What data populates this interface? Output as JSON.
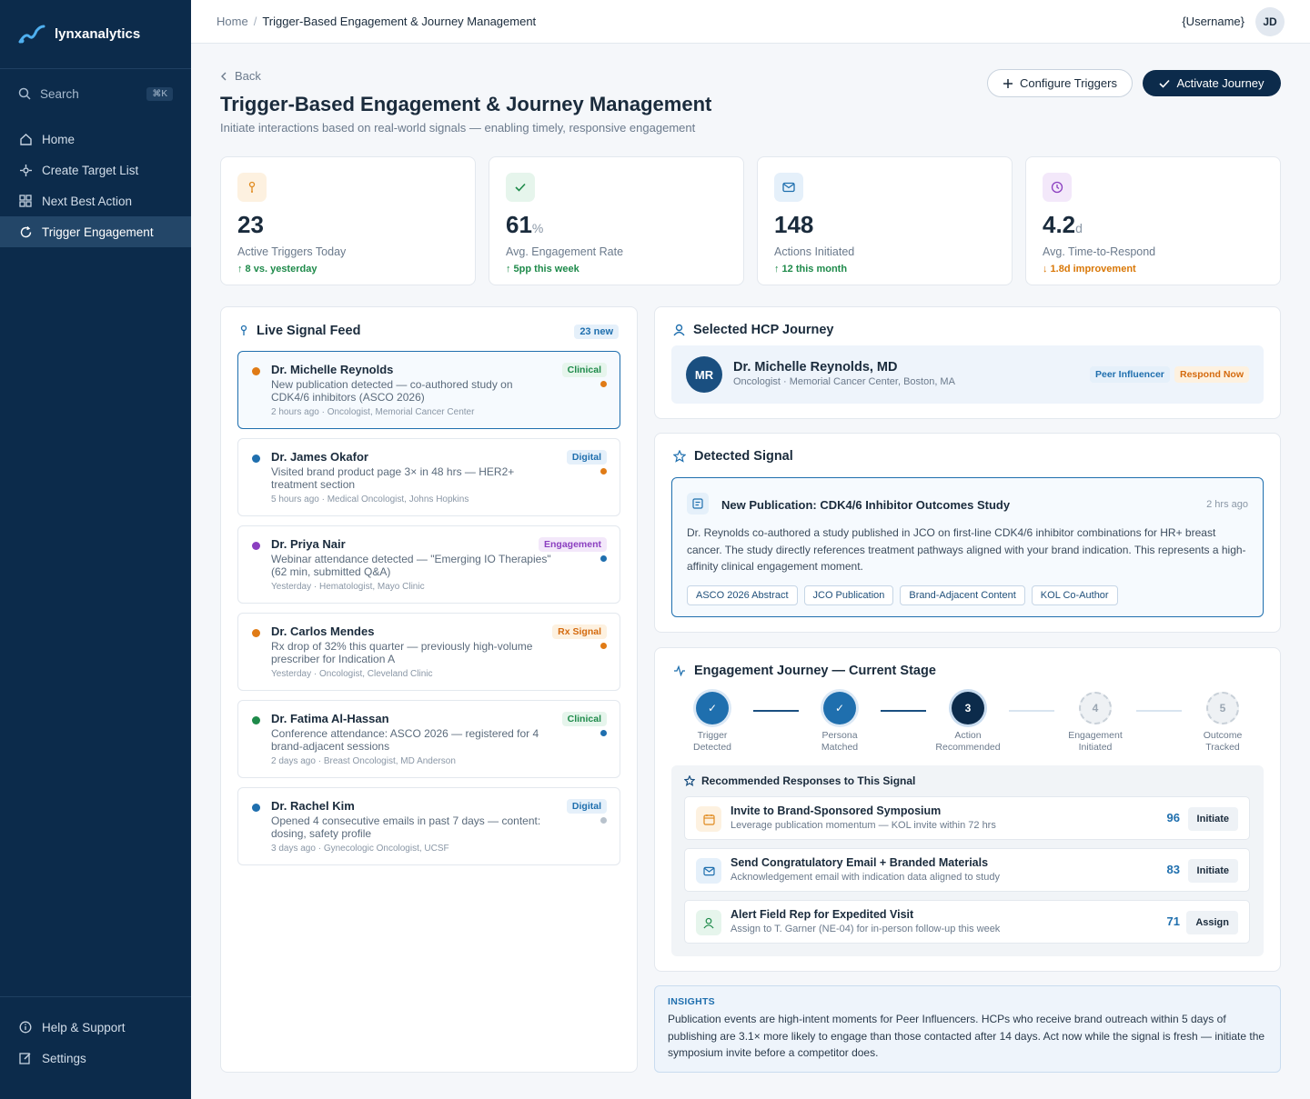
{
  "app": {
    "name": "lynxanalytics"
  },
  "sidebar": {
    "search_label": "Search",
    "search_shortcut": "⌘K",
    "items": [
      {
        "label": "Home",
        "icon": "home-icon"
      },
      {
        "label": "Create Target List",
        "icon": "target-icon"
      },
      {
        "label": "Next Best Action",
        "icon": "grid-icon"
      },
      {
        "label": "Trigger Engagement",
        "icon": "refresh-icon",
        "active": true
      }
    ],
    "bottom": [
      {
        "label": "Help & Support",
        "icon": "info-icon"
      },
      {
        "label": "Settings",
        "icon": "edit-icon"
      }
    ]
  },
  "topbar": {
    "breadcrumb_home": "Home",
    "breadcrumb_sep": "/",
    "breadcrumb_current": "Trigger-Based Engagement & Journey Management",
    "username": "{Username}",
    "avatar_initials": "JD"
  },
  "page": {
    "back_label": "Back",
    "title": "Trigger-Based Engagement & Journey Management",
    "subtitle": "Initiate interactions based on real-world signals — enabling timely, responsive engagement",
    "configure_label": "Configure Triggers",
    "activate_label": "Activate Journey"
  },
  "stats": [
    {
      "value": "23",
      "unit": "",
      "label": "Active Triggers Today",
      "delta": "↑ 8 vs. yesterday",
      "delta_color": "#1e8a4a",
      "icon": "trigger-icon",
      "icon_bg": "#fdf1e0",
      "icon_color": "#e08a1e"
    },
    {
      "value": "61",
      "unit": "%",
      "label": "Avg. Engagement Rate",
      "delta": "↑ 5pp this week",
      "delta_color": "#1e8a4a",
      "icon": "check-icon",
      "icon_bg": "#e6f5ec",
      "icon_color": "#1e8a4a"
    },
    {
      "value": "148",
      "unit": "",
      "label": "Actions Initiated",
      "delta": "↑ 12 this month",
      "delta_color": "#1e8a4a",
      "icon": "mail-icon",
      "icon_bg": "#e5f0fa",
      "icon_color": "#1f6fae"
    },
    {
      "value": "4.2",
      "unit": "d",
      "label": "Avg. Time-to-Respond",
      "delta": "↓ 1.8d improvement",
      "delta_color": "#d97706",
      "icon": "clock-icon",
      "icon_bg": "#f3e8fa",
      "icon_color": "#8b3fc0"
    }
  ],
  "feed": {
    "title": "Live Signal Feed",
    "badge": "23 new",
    "items": [
      {
        "name": "Dr. Michelle Reynolds",
        "desc": "New publication detected — co-authored study on CDK4/6 inhibitors (ASCO 2026)",
        "meta": "2 hours ago · Oncologist, Memorial Cancer Center",
        "tag": "Clinical",
        "tag_color": "#1e8a4a",
        "tag_bg": "#e6f5ec",
        "dot": "#e07b16",
        "sdot": "#e07b16",
        "selected": true
      },
      {
        "name": "Dr. James Okafor",
        "desc": "Visited brand product page 3× in 48 hrs — HER2+ treatment section",
        "meta": "5 hours ago · Medical Oncologist, Johns Hopkins",
        "tag": "Digital",
        "tag_color": "#1f6fae",
        "tag_bg": "#e5f0fa",
        "dot": "#1f6fae",
        "sdot": "#e07b16"
      },
      {
        "name": "Dr. Priya Nair",
        "desc": "Webinar attendance detected — \"Emerging IO Therapies\" (62 min, submitted Q&A)",
        "meta": "Yesterday · Hematologist, Mayo Clinic",
        "tag": "Engagement",
        "tag_color": "#8b3fc0",
        "tag_bg": "#f3e8fa",
        "dot": "#8b3fc0",
        "sdot": "#1f6fae"
      },
      {
        "name": "Dr. Carlos Mendes",
        "desc": "Rx drop of 32% this quarter — previously high-volume prescriber for Indication A",
        "meta": "Yesterday · Oncologist, Cleveland Clinic",
        "tag": "Rx Signal",
        "tag_color": "#d46a0e",
        "tag_bg": "#fdf1e0",
        "dot": "#e07b16",
        "sdot": "#e07b16"
      },
      {
        "name": "Dr. Fatima Al-Hassan",
        "desc": "Conference attendance: ASCO 2026 — registered for 4 brand-adjacent sessions",
        "meta": "2 days ago · Breast Oncologist, MD Anderson",
        "tag": "Clinical",
        "tag_color": "#1e8a4a",
        "tag_bg": "#e6f5ec",
        "dot": "#1e8a4a",
        "sdot": "#1f6fae"
      },
      {
        "name": "Dr. Rachel Kim",
        "desc": "Opened 4 consecutive emails in past 7 days — content: dosing, safety profile",
        "meta": "3 days ago · Gynecologic Oncologist, UCSF",
        "tag": "Digital",
        "tag_color": "#1f6fae",
        "tag_bg": "#e5f0fa",
        "dot": "#1f6fae",
        "sdot": "#b8c2cc"
      }
    ]
  },
  "hcp": {
    "section_title": "Selected HCP Journey",
    "initials": "MR",
    "name": "Dr. Michelle Reynolds, MD",
    "sub": "Oncologist · Memorial Cancer Center, Boston, MA",
    "badge1": "Peer Influencer",
    "badge2": "Respond Now"
  },
  "signal": {
    "section_title": "Detected Signal",
    "title": "New Publication: CDK4/6 Inhibitor Outcomes Study",
    "time": "2 hrs ago",
    "body": "Dr. Reynolds co-authored a study published in JCO on first-line CDK4/6 inhibitor combinations for HR+ breast cancer. The study directly references treatment pathways aligned with your brand indication. This represents a high-affinity clinical engagement moment.",
    "chips": [
      "ASCO 2026 Abstract",
      "JCO Publication",
      "Brand-Adjacent Content",
      "KOL Co-Author"
    ]
  },
  "journey": {
    "section_title": "Engagement Journey — Current Stage",
    "steps": [
      {
        "label1": "Trigger",
        "label2": "Detected",
        "mark": "✓",
        "state": "done"
      },
      {
        "label1": "Persona",
        "label2": "Matched",
        "mark": "✓",
        "state": "done"
      },
      {
        "label1": "Action",
        "label2": "Recommended",
        "mark": "3",
        "state": "current"
      },
      {
        "label1": "Engagement",
        "label2": "Initiated",
        "mark": "4",
        "state": "todo"
      },
      {
        "label1": "Outcome",
        "label2": "Tracked",
        "mark": "5",
        "state": "todo"
      }
    ],
    "responses_title": "Recommended Responses to This Signal",
    "responses": [
      {
        "title": "Invite to Brand-Sponsored Symposium",
        "desc": "Leverage publication momentum — KOL invite within 72 hrs",
        "score": "96",
        "action": "Initiate",
        "icon": "calendar-icon",
        "icon_bg": "#fdf1e0",
        "icon_color": "#e08a1e"
      },
      {
        "title": "Send Congratulatory Email + Branded Materials",
        "desc": "Acknowledgement email with indication data aligned to study",
        "score": "83",
        "action": "Initiate",
        "icon": "mail-icon",
        "icon_bg": "#e5f0fa",
        "icon_color": "#1f6fae"
      },
      {
        "title": "Alert Field Rep for Expedited Visit",
        "desc": "Assign to T. Garner (NE-04) for in-person follow-up this week",
        "score": "71",
        "action": "Assign",
        "icon": "user-icon",
        "icon_bg": "#e6f5ec",
        "icon_color": "#1e8a4a"
      }
    ]
  },
  "insights": {
    "label": "INSIGHTS",
    "text": "Publication events are high-intent moments for Peer Influencers. HCPs who receive brand outreach within 5 days of publishing are 3.1× more likely to engage than those contacted after 14 days. Act now while the signal is fresh — initiate the symposium invite before a competitor does."
  }
}
